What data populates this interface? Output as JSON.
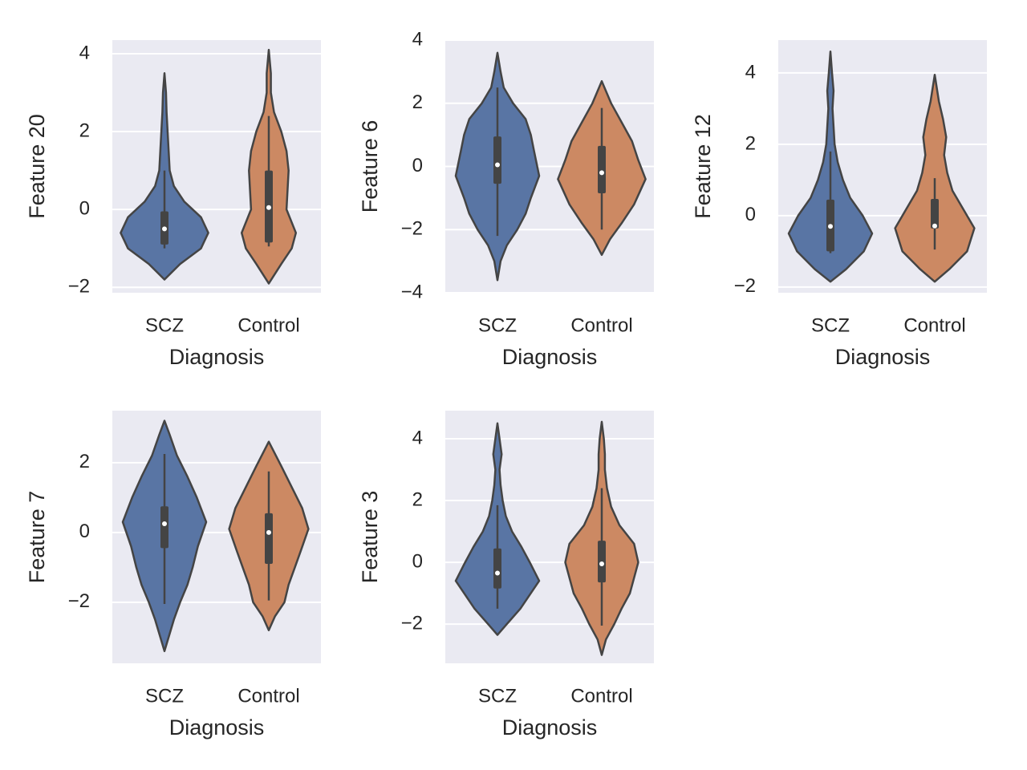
{
  "chart_data": [
    {
      "type": "violin",
      "ylabel": "Feature 20",
      "xlabel": "Diagnosis",
      "categories": [
        "SCZ",
        "Control"
      ],
      "ylim": [
        -2.14,
        4.35
      ],
      "yticks": [
        {
          "value": -2,
          "label": "−2"
        },
        0,
        2,
        4
      ],
      "grid": true,
      "violins": [
        {
          "color": "#5975a4",
          "kde_y": [
            -1.8,
            -1.4,
            -1,
            -0.6,
            -0.2,
            0.2,
            0.6,
            1,
            1.5,
            2,
            2.5,
            3,
            3.5
          ],
          "kde_width": [
            0,
            0.15,
            0.35,
            0.42,
            0.35,
            0.19,
            0.09,
            0.05,
            0.04,
            0.03,
            0.02,
            0.015,
            0
          ],
          "whisker_low": -1.0,
          "q1": -0.9,
          "median": -0.5,
          "q3": -0.05,
          "whisker_high": 1.0
        },
        {
          "color": "#cc8963",
          "kde_y": [
            -1.9,
            -1.4,
            -1,
            -0.6,
            0,
            0.5,
            1,
            1.5,
            2,
            2.5,
            3,
            3.5,
            4.1
          ],
          "kde_width": [
            0,
            0.12,
            0.22,
            0.26,
            0.17,
            0.18,
            0.19,
            0.17,
            0.12,
            0.05,
            0.02,
            0.02,
            0
          ],
          "whisker_low": -0.95,
          "q1": -0.85,
          "median": 0.05,
          "q3": 1.0,
          "whisker_high": 2.4
        }
      ]
    },
    {
      "type": "violin",
      "ylabel": "Feature 6",
      "xlabel": "Diagnosis",
      "categories": [
        "SCZ",
        "Control"
      ],
      "ylim": [
        -4,
        4
      ],
      "yticks": [
        {
          "value": -4,
          "label": "−4"
        },
        {
          "value": -2,
          "label": "−2"
        },
        0,
        2,
        4
      ],
      "grid": true,
      "violins": [
        {
          "color": "#5975a4",
          "kde_y": [
            -3.6,
            -3,
            -2.5,
            -2,
            -1.5,
            -1,
            -0.3,
            0.5,
            1,
            1.5,
            2,
            2.5,
            3,
            3.6
          ],
          "kde_width": [
            0,
            0.03,
            0.09,
            0.19,
            0.27,
            0.32,
            0.4,
            0.35,
            0.32,
            0.27,
            0.15,
            0.06,
            0.03,
            0
          ],
          "whisker_low": -2.2,
          "q1": -0.55,
          "median": 0.05,
          "q3": 0.95,
          "whisker_high": 2.5
        },
        {
          "color": "#cc8963",
          "kde_y": [
            -2.8,
            -2.3,
            -1.8,
            -1.2,
            -0.4,
            0.2,
            0.8,
            1.4,
            2,
            2.7
          ],
          "kde_width": [
            0,
            0.08,
            0.19,
            0.31,
            0.42,
            0.35,
            0.29,
            0.19,
            0.09,
            0
          ],
          "whisker_low": -2.0,
          "q1": -0.85,
          "median": -0.2,
          "q3": 0.65,
          "whisker_high": 1.85
        }
      ]
    },
    {
      "type": "violin",
      "ylabel": "Feature 12",
      "xlabel": "Diagnosis",
      "categories": [
        "SCZ",
        "Control"
      ],
      "ylim": [
        -2.16,
        4.92
      ],
      "yticks": [
        {
          "value": -2,
          "label": "−2"
        },
        0,
        2,
        4
      ],
      "grid": true,
      "violins": [
        {
          "color": "#5975a4",
          "kde_y": [
            -1.85,
            -1.5,
            -1,
            -0.5,
            0,
            0.5,
            1,
            1.5,
            2,
            2.5,
            3,
            3.5,
            4,
            4.6
          ],
          "kde_width": [
            0,
            0.15,
            0.32,
            0.4,
            0.31,
            0.19,
            0.12,
            0.07,
            0.04,
            0.03,
            0.02,
            0.03,
            0.015,
            0
          ],
          "whisker_low": -1.05,
          "q1": -1.0,
          "median": -0.3,
          "q3": 0.45,
          "whisker_high": 1.8
        },
        {
          "color": "#cc8963",
          "kde_y": [
            -1.85,
            -1.5,
            -1,
            -0.35,
            0.2,
            0.7,
            1.2,
            1.7,
            2.2,
            2.7,
            3.2,
            3.95
          ],
          "kde_width": [
            0,
            0.14,
            0.31,
            0.38,
            0.27,
            0.17,
            0.12,
            0.09,
            0.11,
            0.08,
            0.04,
            0
          ],
          "whisker_low": -0.95,
          "q1": -0.36,
          "median": -0.29,
          "q3": 0.47,
          "whisker_high": 1.05
        }
      ]
    },
    {
      "type": "violin",
      "ylabel": "Feature 7",
      "xlabel": "Diagnosis",
      "categories": [
        "SCZ",
        "Control"
      ],
      "ylim": [
        -3.75,
        3.49
      ],
      "yticks": [
        {
          "value": -2,
          "label": "−2"
        },
        0,
        2
      ],
      "grid": true,
      "violins": [
        {
          "color": "#5975a4",
          "kde_y": [
            -3.4,
            -3,
            -2.5,
            -2,
            -1.5,
            -1,
            -0.4,
            0.3,
            1,
            1.6,
            2.2,
            2.8,
            3.2
          ],
          "kde_width": [
            0,
            0.04,
            0.09,
            0.15,
            0.22,
            0.27,
            0.32,
            0.4,
            0.31,
            0.22,
            0.12,
            0.05,
            0
          ],
          "whisker_low": -2.05,
          "q1": -0.45,
          "median": 0.25,
          "q3": 0.75,
          "whisker_high": 2.25
        },
        {
          "color": "#cc8963",
          "kde_y": [
            -2.8,
            -2.4,
            -2,
            -1.5,
            -1,
            -0.5,
            0.1,
            0.7,
            1.3,
            1.9,
            2.6
          ],
          "kde_width": [
            0,
            0.06,
            0.15,
            0.19,
            0.25,
            0.31,
            0.38,
            0.32,
            0.22,
            0.12,
            0
          ],
          "whisker_low": -1.95,
          "q1": -0.9,
          "median": 0,
          "q3": 0.55,
          "whisker_high": 1.75
        }
      ]
    },
    {
      "type": "violin",
      "ylabel": "Feature 3",
      "xlabel": "Diagnosis",
      "categories": [
        "SCZ",
        "Control"
      ],
      "ylim": [
        -3.27,
        4.91
      ],
      "yticks": [
        {
          "value": -2,
          "label": "−2"
        },
        0,
        2,
        4
      ],
      "grid": true,
      "violins": [
        {
          "color": "#5975a4",
          "kde_y": [
            -2.35,
            -2,
            -1.5,
            -1,
            -0.6,
            0,
            0.5,
            1,
            1.5,
            2,
            2.5,
            3,
            3.5,
            4,
            4.5
          ],
          "kde_width": [
            0,
            0.09,
            0.22,
            0.32,
            0.4,
            0.31,
            0.23,
            0.14,
            0.08,
            0.05,
            0.03,
            0.02,
            0.04,
            0.02,
            0
          ],
          "whisker_low": -1.5,
          "q1": -0.85,
          "median": -0.35,
          "q3": 0.45,
          "whisker_high": 1.85
        },
        {
          "color": "#cc8963",
          "kde_y": [
            -3,
            -2.5,
            -2,
            -1.5,
            -1,
            0,
            0.6,
            1.2,
            1.8,
            2.4,
            3,
            3.5,
            4,
            4.55
          ],
          "kde_width": [
            0,
            0.04,
            0.12,
            0.19,
            0.27,
            0.35,
            0.31,
            0.17,
            0.09,
            0.05,
            0.03,
            0.03,
            0.02,
            0
          ],
          "whisker_low": -2.05,
          "q1": -0.65,
          "median": -0.05,
          "q3": 0.7,
          "whisker_high": 2.4
        }
      ]
    }
  ]
}
